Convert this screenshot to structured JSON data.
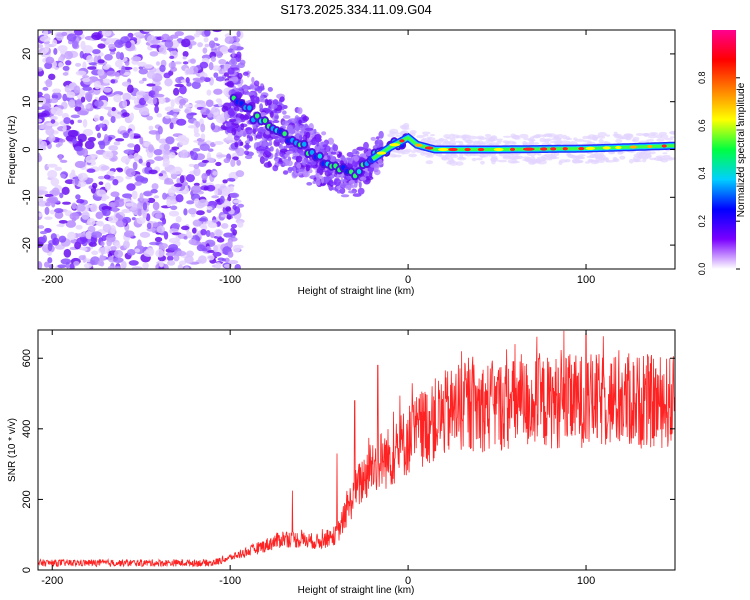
{
  "title": "S173.2025.334.11.09.G04",
  "chart_data": [
    {
      "type": "heatmap",
      "name": "spectrogram",
      "xlabel": "Height of straight line (km)",
      "ylabel": "Frequency (Hz)",
      "xlim": [
        -208,
        150
      ],
      "ylim": [
        -25,
        25
      ],
      "xticks": [
        -200,
        -100,
        0,
        100
      ],
      "yticks": [
        -20,
        -10,
        0,
        10,
        20
      ],
      "noise_region_x": [
        -208,
        -100
      ],
      "curve_points": [
        [
          -100,
          12
        ],
        [
          -90,
          8
        ],
        [
          -80,
          5
        ],
        [
          -70,
          3
        ],
        [
          -60,
          1
        ],
        [
          -50,
          -2
        ],
        [
          -40,
          -4
        ],
        [
          -30,
          -5
        ],
        [
          -20,
          -2
        ],
        [
          -10,
          0.5
        ],
        [
          0,
          2.5
        ],
        [
          5,
          1
        ],
        [
          15,
          0
        ],
        [
          50,
          0
        ],
        [
          100,
          0.2
        ],
        [
          150,
          0.8
        ]
      ],
      "colorbar": {
        "label": "Normalized spectral amplitude",
        "range": [
          0,
          1
        ],
        "ticks": [
          "0.0",
          "0.2",
          "0.4",
          "0.6",
          "0.8"
        ],
        "colors": [
          "#ffffff",
          "#7a00ff",
          "#0000ff",
          "#00d0ff",
          "#00ff40",
          "#ffff00",
          "#ff8000",
          "#ff0000",
          "#ff0090"
        ]
      }
    },
    {
      "type": "line",
      "name": "snr",
      "xlabel": "Height of straight line (km)",
      "ylabel": "SNR (10 * v/v)",
      "xlim": [
        -208,
        150
      ],
      "ylim": [
        0,
        680
      ],
      "xticks": [
        -200,
        -100,
        0,
        100
      ],
      "yticks": [
        0,
        200,
        400,
        600
      ],
      "color": "#ff2222",
      "envelope": [
        [
          -208,
          20
        ],
        [
          -110,
          20
        ],
        [
          -100,
          35
        ],
        [
          -80,
          70
        ],
        [
          -70,
          90
        ],
        [
          -50,
          80
        ],
        [
          -40,
          100
        ],
        [
          -30,
          220
        ],
        [
          -20,
          300
        ],
        [
          -10,
          320
        ],
        [
          0,
          370
        ],
        [
          10,
          410
        ],
        [
          20,
          440
        ],
        [
          30,
          460
        ],
        [
          50,
          465
        ],
        [
          80,
          475
        ],
        [
          100,
          480
        ],
        [
          150,
          475
        ]
      ],
      "spikes": [
        [
          -65,
          225
        ],
        [
          -40,
          330
        ],
        [
          -30,
          480
        ],
        [
          -17,
          580
        ],
        [
          30,
          620
        ],
        [
          60,
          640
        ],
        [
          100,
          670
        ]
      ]
    }
  ]
}
